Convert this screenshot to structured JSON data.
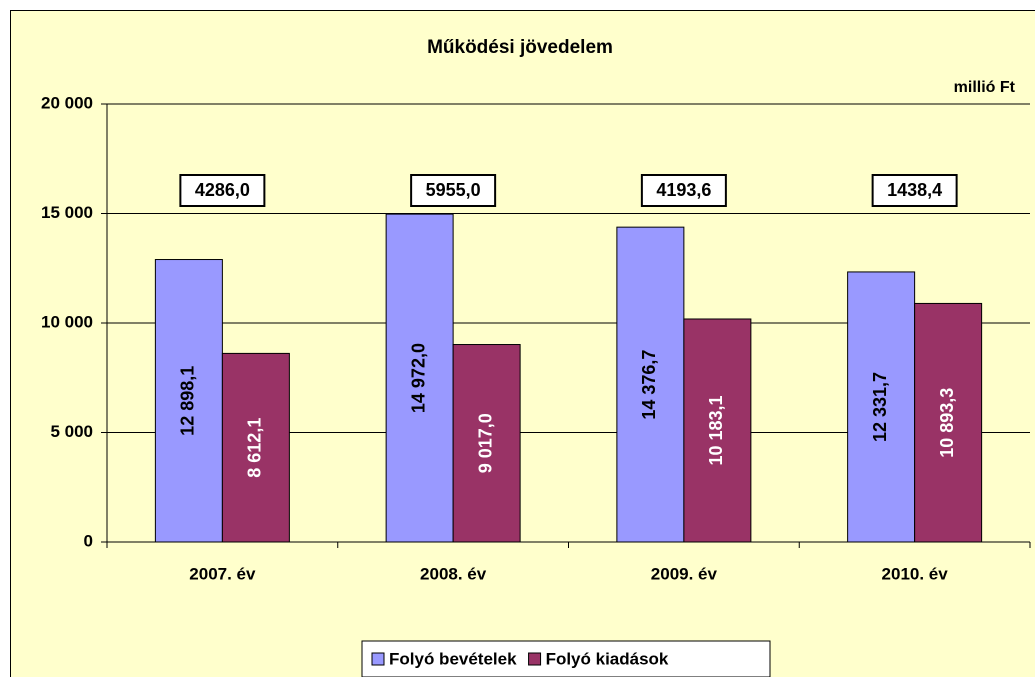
{
  "chart_data": {
    "type": "bar",
    "title": "Működési jövedelem",
    "unit_label": "millió Ft",
    "categories": [
      "2007. év",
      "2008. év",
      "2009. év",
      "2010. év"
    ],
    "series": [
      {
        "name": "Folyó bevételek",
        "color": "#9999ff",
        "label_color": "#000000",
        "values": [
          12898.1,
          14972.0,
          14376.7,
          12331.7
        ],
        "value_labels": [
          "12 898,1",
          "14 972,0",
          "14 376,7",
          "12 331,7"
        ]
      },
      {
        "name": "Folyó kiadások",
        "color": "#993366",
        "label_color": "#ffffff",
        "values": [
          8612.1,
          9017.0,
          10183.1,
          10893.3
        ],
        "value_labels": [
          "8 612,1",
          "9 017,0",
          "10 183,1",
          "10 893,3"
        ]
      }
    ],
    "annotations": [
      "4286,0",
      "5955,0",
      "4193,6",
      "1438,4"
    ],
    "ylim": [
      0,
      20000
    ],
    "yticks": [
      0,
      {
        "value": 5000,
        "label": "5 000"
      },
      {
        "value": 10000,
        "label": "10 000"
      },
      {
        "value": 15000,
        "label": "15 000"
      },
      {
        "value": 20000,
        "label": "20 000"
      }
    ],
    "grid": true,
    "legend": "bottom"
  }
}
